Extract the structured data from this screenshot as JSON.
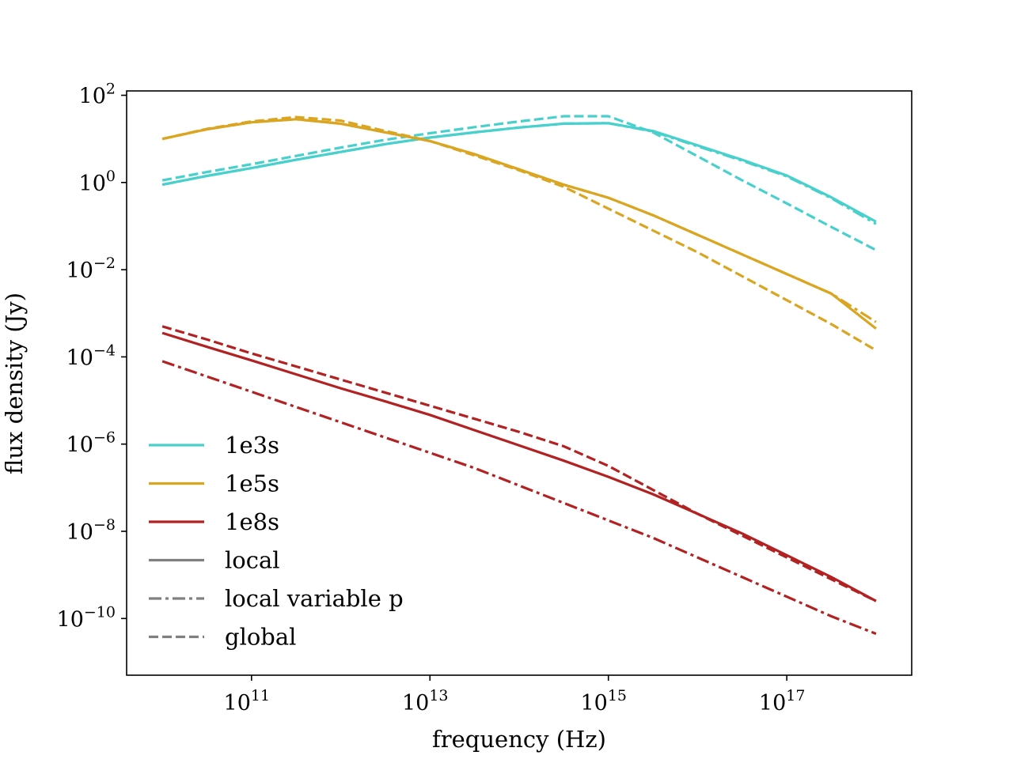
{
  "chart_data": {
    "type": "line",
    "title": "",
    "xlabel": "frequency (Hz)",
    "ylabel": "flux density (Jy)",
    "xscale": "log",
    "yscale": "log",
    "xlim_log10": [
      9.6,
      18.4
    ],
    "ylim_log10": [
      -11.3,
      2.1
    ],
    "x_ticks": [
      {
        "base": "10",
        "exp": "11",
        "log10": 11
      },
      {
        "base": "10",
        "exp": "13",
        "log10": 13
      },
      {
        "base": "10",
        "exp": "15",
        "log10": 15
      },
      {
        "base": "10",
        "exp": "17",
        "log10": 17
      }
    ],
    "y_ticks": [
      {
        "base": "10",
        "exp": "2",
        "log10": 2
      },
      {
        "base": "10",
        "exp": "0",
        "log10": 0
      },
      {
        "base": "10",
        "exp": "−2",
        "log10": -2
      },
      {
        "base": "10",
        "exp": "−4",
        "log10": -4
      },
      {
        "base": "10",
        "exp": "−6",
        "log10": -6
      },
      {
        "base": "10",
        "exp": "−8",
        "log10": -8
      },
      {
        "base": "10",
        "exp": "−10",
        "log10": -10
      }
    ],
    "grid": false,
    "legend_position": "lower-left",
    "legend": [
      {
        "label": "1e3s",
        "color": "#48d1cc",
        "style": "solid"
      },
      {
        "label": "1e5s",
        "color": "#daa520",
        "style": "solid"
      },
      {
        "label": "1e8s",
        "color": "#b22222",
        "style": "solid"
      },
      {
        "label": "local",
        "color": "#808080",
        "style": "solid"
      },
      {
        "label": "local variable p",
        "color": "#808080",
        "style": "dashdot"
      },
      {
        "label": "global",
        "color": "#808080",
        "style": "dashed"
      }
    ],
    "x_log10": [
      10,
      10.5,
      11,
      11.5,
      12,
      12.5,
      13,
      13.5,
      14,
      14.5,
      15,
      15.5,
      16,
      16.5,
      17,
      17.5,
      18
    ],
    "series": [
      {
        "name": "1e3s local",
        "time": "1e3s",
        "model": "local",
        "color": "#48d1cc",
        "style": "solid",
        "y_log10": [
          -0.05,
          0.15,
          0.33,
          0.52,
          0.7,
          0.88,
          1.03,
          1.15,
          1.26,
          1.35,
          1.36,
          1.18,
          0.85,
          0.52,
          0.16,
          -0.34,
          -0.9
        ]
      },
      {
        "name": "1e3s local variable p",
        "time": "1e3s",
        "model": "local variable p",
        "color": "#48d1cc",
        "style": "dashdot",
        "y_log10": [
          -0.05,
          0.15,
          0.33,
          0.52,
          0.7,
          0.88,
          1.03,
          1.15,
          1.26,
          1.35,
          1.36,
          1.17,
          0.83,
          0.5,
          0.14,
          -0.36,
          -0.95
        ]
      },
      {
        "name": "1e3s global",
        "time": "1e3s",
        "model": "global",
        "color": "#48d1cc",
        "style": "dashed",
        "y_log10": [
          0.05,
          0.24,
          0.42,
          0.61,
          0.8,
          0.98,
          1.13,
          1.27,
          1.4,
          1.52,
          1.52,
          1.15,
          0.6,
          0.05,
          -0.48,
          -1.02,
          -1.55
        ]
      },
      {
        "name": "1e5s local",
        "time": "1e5s",
        "model": "local",
        "color": "#daa520",
        "style": "solid",
        "y_log10": [
          1.0,
          1.22,
          1.38,
          1.45,
          1.35,
          1.15,
          0.95,
          0.65,
          0.3,
          -0.05,
          -0.35,
          -0.75,
          -1.2,
          -1.65,
          -2.1,
          -2.55,
          -3.35
        ]
      },
      {
        "name": "1e5s local variable p",
        "time": "1e5s",
        "model": "local variable p",
        "color": "#daa520",
        "style": "dashdot",
        "y_log10": [
          1.0,
          1.22,
          1.38,
          1.45,
          1.35,
          1.15,
          0.95,
          0.65,
          0.3,
          -0.05,
          -0.35,
          -0.75,
          -1.2,
          -1.65,
          -2.1,
          -2.55,
          -3.2
        ]
      },
      {
        "name": "1e5s global",
        "time": "1e5s",
        "model": "global",
        "color": "#daa520",
        "style": "dashed",
        "y_log10": [
          1.0,
          1.23,
          1.4,
          1.5,
          1.42,
          1.18,
          0.95,
          0.62,
          0.28,
          -0.1,
          -0.6,
          -1.1,
          -1.6,
          -2.15,
          -2.7,
          -3.25,
          -3.85
        ]
      },
      {
        "name": "1e8s local",
        "time": "1e8s",
        "model": "local",
        "color": "#b22222",
        "style": "solid",
        "y_log10": [
          -3.45,
          -3.77,
          -4.08,
          -4.4,
          -4.72,
          -5.02,
          -5.33,
          -5.68,
          -6.03,
          -6.38,
          -6.75,
          -7.15,
          -7.6,
          -8.05,
          -8.55,
          -9.05,
          -9.6
        ]
      },
      {
        "name": "1e8s local variable p",
        "time": "1e8s",
        "model": "local variable p",
        "color": "#b22222",
        "style": "dashdot",
        "y_log10": [
          -4.1,
          -4.45,
          -4.8,
          -5.15,
          -5.5,
          -5.85,
          -6.2,
          -6.55,
          -6.95,
          -7.35,
          -7.75,
          -8.15,
          -8.6,
          -9.05,
          -9.5,
          -9.95,
          -10.35
        ]
      },
      {
        "name": "1e8s global",
        "time": "1e8s",
        "model": "global",
        "color": "#b22222",
        "style": "dashed",
        "y_log10": [
          -3.3,
          -3.6,
          -3.92,
          -4.22,
          -4.52,
          -4.82,
          -5.12,
          -5.42,
          -5.72,
          -6.05,
          -6.5,
          -7.05,
          -7.6,
          -8.1,
          -8.6,
          -9.1,
          -9.6
        ]
      }
    ]
  }
}
